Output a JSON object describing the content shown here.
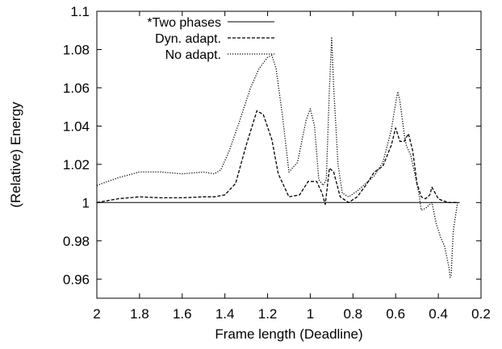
{
  "chart_data": {
    "type": "line",
    "xlabel": "Frame length (Deadline)",
    "ylabel": "(Relative) Energy",
    "xlim": [
      2.0,
      0.2
    ],
    "x_reversed": true,
    "ylim": [
      0.95,
      1.1
    ],
    "grid": false,
    "legend_position": "top-left",
    "x_ticks": [
      2,
      1.8,
      1.6,
      1.4,
      1.2,
      1,
      0.8,
      0.6,
      0.4,
      0.2
    ],
    "x_tick_labels": [
      "2",
      "1.8",
      "1.6",
      "1.4",
      "1.2",
      "1",
      "0.8",
      "0.6",
      "0.4",
      "0.2"
    ],
    "y_ticks": [
      0.96,
      0.98,
      1.0,
      1.02,
      1.04,
      1.06,
      1.08,
      1.1
    ],
    "y_tick_labels": [
      "0.96",
      "0.98",
      "1",
      "1.02",
      "1.04",
      "1.06",
      "1.08",
      "1.1"
    ],
    "series": [
      {
        "name": "*Two phases",
        "style": "solid",
        "x": [
          2.0,
          1.8,
          1.6,
          1.4,
          1.2,
          1.0,
          0.8,
          0.6,
          0.4,
          0.3
        ],
        "y": [
          1.0,
          1.0,
          1.0,
          1.0,
          1.0,
          1.0,
          1.0,
          1.0,
          1.0,
          1.0
        ]
      },
      {
        "name": "Dyn. adapt.",
        "style": "dashed",
        "x": [
          2.0,
          1.9,
          1.8,
          1.7,
          1.6,
          1.5,
          1.45,
          1.4,
          1.35,
          1.3,
          1.25,
          1.22,
          1.18,
          1.15,
          1.1,
          1.05,
          1.01,
          0.97,
          0.945,
          0.93,
          0.91,
          0.89,
          0.86,
          0.82,
          0.78,
          0.74,
          0.7,
          0.66,
          0.62,
          0.6,
          0.58,
          0.56,
          0.54,
          0.52,
          0.5,
          0.48,
          0.46,
          0.44,
          0.43,
          0.42,
          0.4,
          0.38,
          0.35,
          0.32,
          0.31
        ],
        "y": [
          1.0,
          1.002,
          1.003,
          1.0025,
          1.0025,
          1.003,
          1.003,
          1.004,
          1.01,
          1.03,
          1.048,
          1.046,
          1.033,
          1.015,
          1.003,
          1.004,
          1.011,
          1.011,
          1.005,
          0.999,
          1.018,
          1.016,
          1.003,
          1.0,
          1.003,
          1.009,
          1.016,
          1.019,
          1.03,
          1.039,
          1.032,
          1.032,
          1.036,
          1.027,
          1.01,
          1.003,
          1.002,
          1.004,
          1.008,
          1.006,
          1.002,
          1.001,
          1.0,
          1.0,
          1.0
        ]
      },
      {
        "name": "No adapt.",
        "style": "dotted",
        "x": [
          2.0,
          1.9,
          1.8,
          1.7,
          1.6,
          1.5,
          1.45,
          1.42,
          1.38,
          1.33,
          1.28,
          1.24,
          1.2,
          1.18,
          1.16,
          1.13,
          1.1,
          1.06,
          1.02,
          1.0,
          0.98,
          0.96,
          0.94,
          0.925,
          0.91,
          0.9,
          0.89,
          0.87,
          0.85,
          0.82,
          0.78,
          0.74,
          0.7,
          0.66,
          0.62,
          0.6,
          0.59,
          0.58,
          0.56,
          0.55,
          0.53,
          0.51,
          0.49,
          0.48,
          0.46,
          0.43,
          0.41,
          0.39,
          0.37,
          0.35,
          0.345,
          0.34,
          0.33,
          0.31
        ],
        "y": [
          1.009,
          1.013,
          1.016,
          1.016,
          1.015,
          1.016,
          1.015,
          1.017,
          1.027,
          1.043,
          1.06,
          1.07,
          1.076,
          1.077,
          1.07,
          1.045,
          1.016,
          1.021,
          1.043,
          1.049,
          1.04,
          1.012,
          1.009,
          1.012,
          1.06,
          1.086,
          1.06,
          1.02,
          1.005,
          1.003,
          1.006,
          1.01,
          1.014,
          1.021,
          1.038,
          1.052,
          1.058,
          1.053,
          1.036,
          1.03,
          1.025,
          1.015,
          1.004,
          0.996,
          0.997,
          1.0,
          0.989,
          0.982,
          0.977,
          0.966,
          0.961,
          0.962,
          0.985,
          1.0
        ]
      }
    ]
  }
}
